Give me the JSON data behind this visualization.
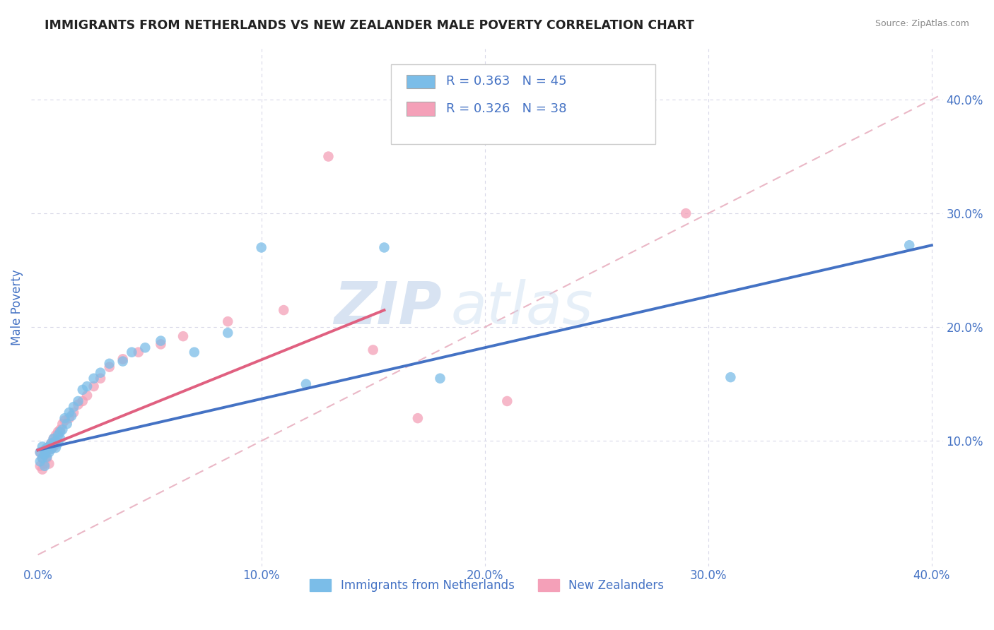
{
  "title": "IMMIGRANTS FROM NETHERLANDS VS NEW ZEALANDER MALE POVERTY CORRELATION CHART",
  "source": "Source: ZipAtlas.com",
  "xlabel": "",
  "ylabel": "Male Poverty",
  "xlim": [
    -0.003,
    0.405
  ],
  "ylim": [
    -0.01,
    0.445
  ],
  "xticks": [
    0.0,
    0.1,
    0.2,
    0.3,
    0.4
  ],
  "yticks": [
    0.1,
    0.2,
    0.3,
    0.4
  ],
  "xtick_labels": [
    "0.0%",
    "10.0%",
    "20.0%",
    "30.0%",
    "40.0%"
  ],
  "ytick_labels": [
    "10.0%",
    "20.0%",
    "30.0%",
    "40.0%"
  ],
  "legend1_label": "Immigrants from Netherlands",
  "legend2_label": "New Zealanders",
  "R_blue": 0.363,
  "N_blue": 45,
  "R_pink": 0.326,
  "N_pink": 38,
  "blue_color": "#7bbde8",
  "pink_color": "#f4a0b8",
  "blue_line_color": "#4472c4",
  "pink_line_color": "#e06080",
  "diagonal_color": "#e8b0c0",
  "background_color": "#ffffff",
  "watermark_zip": "ZIP",
  "watermark_atlas": "atlas",
  "title_color": "#222222",
  "axis_label_color": "#4472c4",
  "tick_label_color": "#4472c4",
  "legend_text_color": "#4472c4",
  "grid_color": "#d8d8e8",
  "blue_line_x0": 0.0,
  "blue_line_y0": 0.092,
  "blue_line_x1": 0.4,
  "blue_line_y1": 0.272,
  "pink_line_x0": 0.0,
  "pink_line_y0": 0.092,
  "pink_line_x1": 0.155,
  "pink_line_y1": 0.215,
  "blue_scatter_x": [
    0.001,
    0.001,
    0.002,
    0.002,
    0.003,
    0.003,
    0.003,
    0.004,
    0.004,
    0.005,
    0.005,
    0.006,
    0.006,
    0.007,
    0.007,
    0.008,
    0.008,
    0.009,
    0.009,
    0.01,
    0.01,
    0.011,
    0.012,
    0.013,
    0.014,
    0.015,
    0.016,
    0.018,
    0.02,
    0.022,
    0.025,
    0.028,
    0.032,
    0.038,
    0.042,
    0.048,
    0.055,
    0.07,
    0.085,
    0.1,
    0.12,
    0.155,
    0.18,
    0.31,
    0.39
  ],
  "blue_scatter_y": [
    0.09,
    0.082,
    0.095,
    0.085,
    0.092,
    0.088,
    0.078,
    0.094,
    0.086,
    0.095,
    0.09,
    0.098,
    0.093,
    0.102,
    0.097,
    0.1,
    0.094,
    0.105,
    0.098,
    0.108,
    0.102,
    0.11,
    0.12,
    0.115,
    0.125,
    0.122,
    0.13,
    0.135,
    0.145,
    0.148,
    0.155,
    0.16,
    0.168,
    0.17,
    0.178,
    0.182,
    0.188,
    0.178,
    0.195,
    0.27,
    0.15,
    0.27,
    0.155,
    0.156,
    0.272
  ],
  "pink_scatter_x": [
    0.001,
    0.001,
    0.002,
    0.002,
    0.003,
    0.003,
    0.004,
    0.004,
    0.005,
    0.005,
    0.006,
    0.006,
    0.007,
    0.007,
    0.008,
    0.009,
    0.01,
    0.011,
    0.012,
    0.014,
    0.016,
    0.018,
    0.02,
    0.022,
    0.025,
    0.028,
    0.032,
    0.038,
    0.045,
    0.055,
    0.065,
    0.085,
    0.11,
    0.13,
    0.15,
    0.17,
    0.21,
    0.29
  ],
  "pink_scatter_y": [
    0.09,
    0.078,
    0.085,
    0.075,
    0.088,
    0.08,
    0.092,
    0.085,
    0.095,
    0.08,
    0.098,
    0.093,
    0.102,
    0.095,
    0.105,
    0.108,
    0.11,
    0.115,
    0.118,
    0.12,
    0.125,
    0.132,
    0.135,
    0.14,
    0.148,
    0.155,
    0.165,
    0.172,
    0.178,
    0.185,
    0.192,
    0.205,
    0.215,
    0.35,
    0.18,
    0.12,
    0.135,
    0.3
  ]
}
